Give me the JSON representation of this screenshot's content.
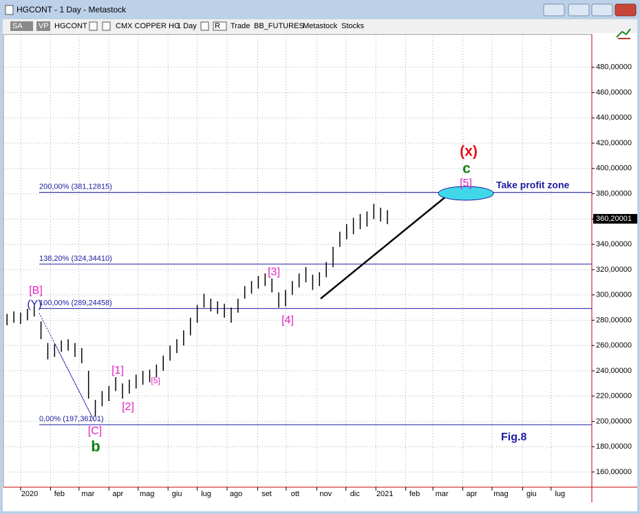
{
  "window": {
    "title": "HGCONT - 1 Day - Metastock",
    "toolbar": [
      "SA",
      "VP",
      "HGCONT",
      "CMX COPPER HG",
      "1 Day",
      "R",
      "Trade",
      "BB_FUTURES",
      "Metastock",
      "Stocks"
    ]
  },
  "chart_data": {
    "type": "ohlc",
    "x": [
      -2,
      -1,
      0,
      1,
      2,
      3,
      4,
      5,
      6,
      7,
      8,
      9,
      10,
      11,
      12,
      13,
      14,
      15,
      16,
      17,
      18,
      19,
      20,
      21,
      22,
      23,
      24,
      25,
      26,
      27,
      28,
      29,
      30,
      31,
      32,
      33,
      34,
      35,
      36,
      37,
      38,
      39,
      40,
      41,
      42,
      43,
      44,
      45,
      46,
      47,
      48,
      49,
      50,
      51,
      52,
      53,
      54
    ],
    "high": [
      285,
      287,
      286,
      289,
      291,
      279,
      262,
      261,
      264,
      265,
      262,
      258,
      240,
      217,
      224,
      228,
      235,
      230,
      233,
      237,
      240,
      241,
      245,
      252,
      260,
      265,
      272,
      282,
      292,
      301,
      297,
      295,
      293,
      290,
      297,
      307,
      311,
      315,
      317,
      313,
      302,
      304,
      311,
      317,
      322,
      316,
      318,
      326,
      338,
      350,
      356,
      361,
      364,
      366,
      372,
      369,
      367
    ],
    "low": [
      276,
      278,
      277,
      280,
      283,
      265,
      249,
      251,
      255,
      256,
      251,
      246,
      218,
      204,
      212,
      216,
      224,
      218,
      222,
      226,
      229,
      231,
      235,
      240,
      248,
      254,
      260,
      268,
      278,
      290,
      287,
      285,
      282,
      278,
      286,
      297,
      301,
      305,
      307,
      302,
      290,
      291,
      300,
      306,
      310,
      304,
      307,
      314,
      322,
      338,
      344,
      348,
      352,
      354,
      360,
      358,
      356
    ],
    "color": "#000000",
    "last_price": 360.20001,
    "last_price_label": "360,20001",
    "xlim": [
      -2.53,
      84.1
    ],
    "xticks": [
      {
        "value": 0,
        "label": "2020"
      },
      {
        "value": 4.4,
        "label": "feb"
      },
      {
        "value": 8.6,
        "label": "mar"
      },
      {
        "value": 13,
        "label": "apr"
      },
      {
        "value": 17.3,
        "label": "mag"
      },
      {
        "value": 21.7,
        "label": "giu"
      },
      {
        "value": 26,
        "label": "lug"
      },
      {
        "value": 30.4,
        "label": "ago"
      },
      {
        "value": 34.9,
        "label": "set"
      },
      {
        "value": 39.1,
        "label": "ott"
      },
      {
        "value": 43.6,
        "label": "nov"
      },
      {
        "value": 47.9,
        "label": "dic"
      },
      {
        "value": 52.3,
        "label": "2021"
      },
      {
        "value": 56.7,
        "label": "feb"
      },
      {
        "value": 60.7,
        "label": "mar"
      },
      {
        "value": 65.1,
        "label": "apr"
      },
      {
        "value": 69.4,
        "label": "mag"
      },
      {
        "value": 73.9,
        "label": "giu"
      },
      {
        "value": 78.1,
        "label": "lug"
      }
    ],
    "ylim": [
      148,
      506
    ],
    "yticks": [
      {
        "value": 160,
        "label": "160,00000"
      },
      {
        "value": 180,
        "label": "180,00000"
      },
      {
        "value": 200,
        "label": "200,00000"
      },
      {
        "value": 220,
        "label": "220,00000"
      },
      {
        "value": 240,
        "label": "240,00000"
      },
      {
        "value": 260,
        "label": "260,00000"
      },
      {
        "value": 280,
        "label": "280,00000"
      },
      {
        "value": 300,
        "label": "300,00000"
      },
      {
        "value": 320,
        "label": "320,00000"
      },
      {
        "value": 340,
        "label": "340,00000"
      },
      {
        "value": 360,
        "label": "360,00000"
      },
      {
        "value": 380,
        "label": "380,00000"
      },
      {
        "value": 400,
        "label": "400,00000"
      },
      {
        "value": 420,
        "label": "420,00000"
      },
      {
        "value": 440,
        "label": "440,00000"
      },
      {
        "value": 460,
        "label": "460,00000"
      },
      {
        "value": 480,
        "label": "480,00000"
      }
    ],
    "grid": true,
    "levels": [
      {
        "value": 381.12815,
        "label": "200,00% (381,12815)"
      },
      {
        "value": 324.3441,
        "label": "138,20% (324,34410)"
      },
      {
        "value": 289.24458,
        "label": "100,00% (289,24458)"
      },
      {
        "value": 197.36101,
        "label": "0,00% (197,36101)"
      }
    ],
    "annotations": [
      "(x)",
      "c",
      "[5]",
      "Take profit zone",
      "[3]",
      "[4]",
      "[B]",
      "(Y)",
      "[1]",
      "[2]",
      "[5]",
      "[C]",
      "b",
      "Fig.8"
    ]
  }
}
